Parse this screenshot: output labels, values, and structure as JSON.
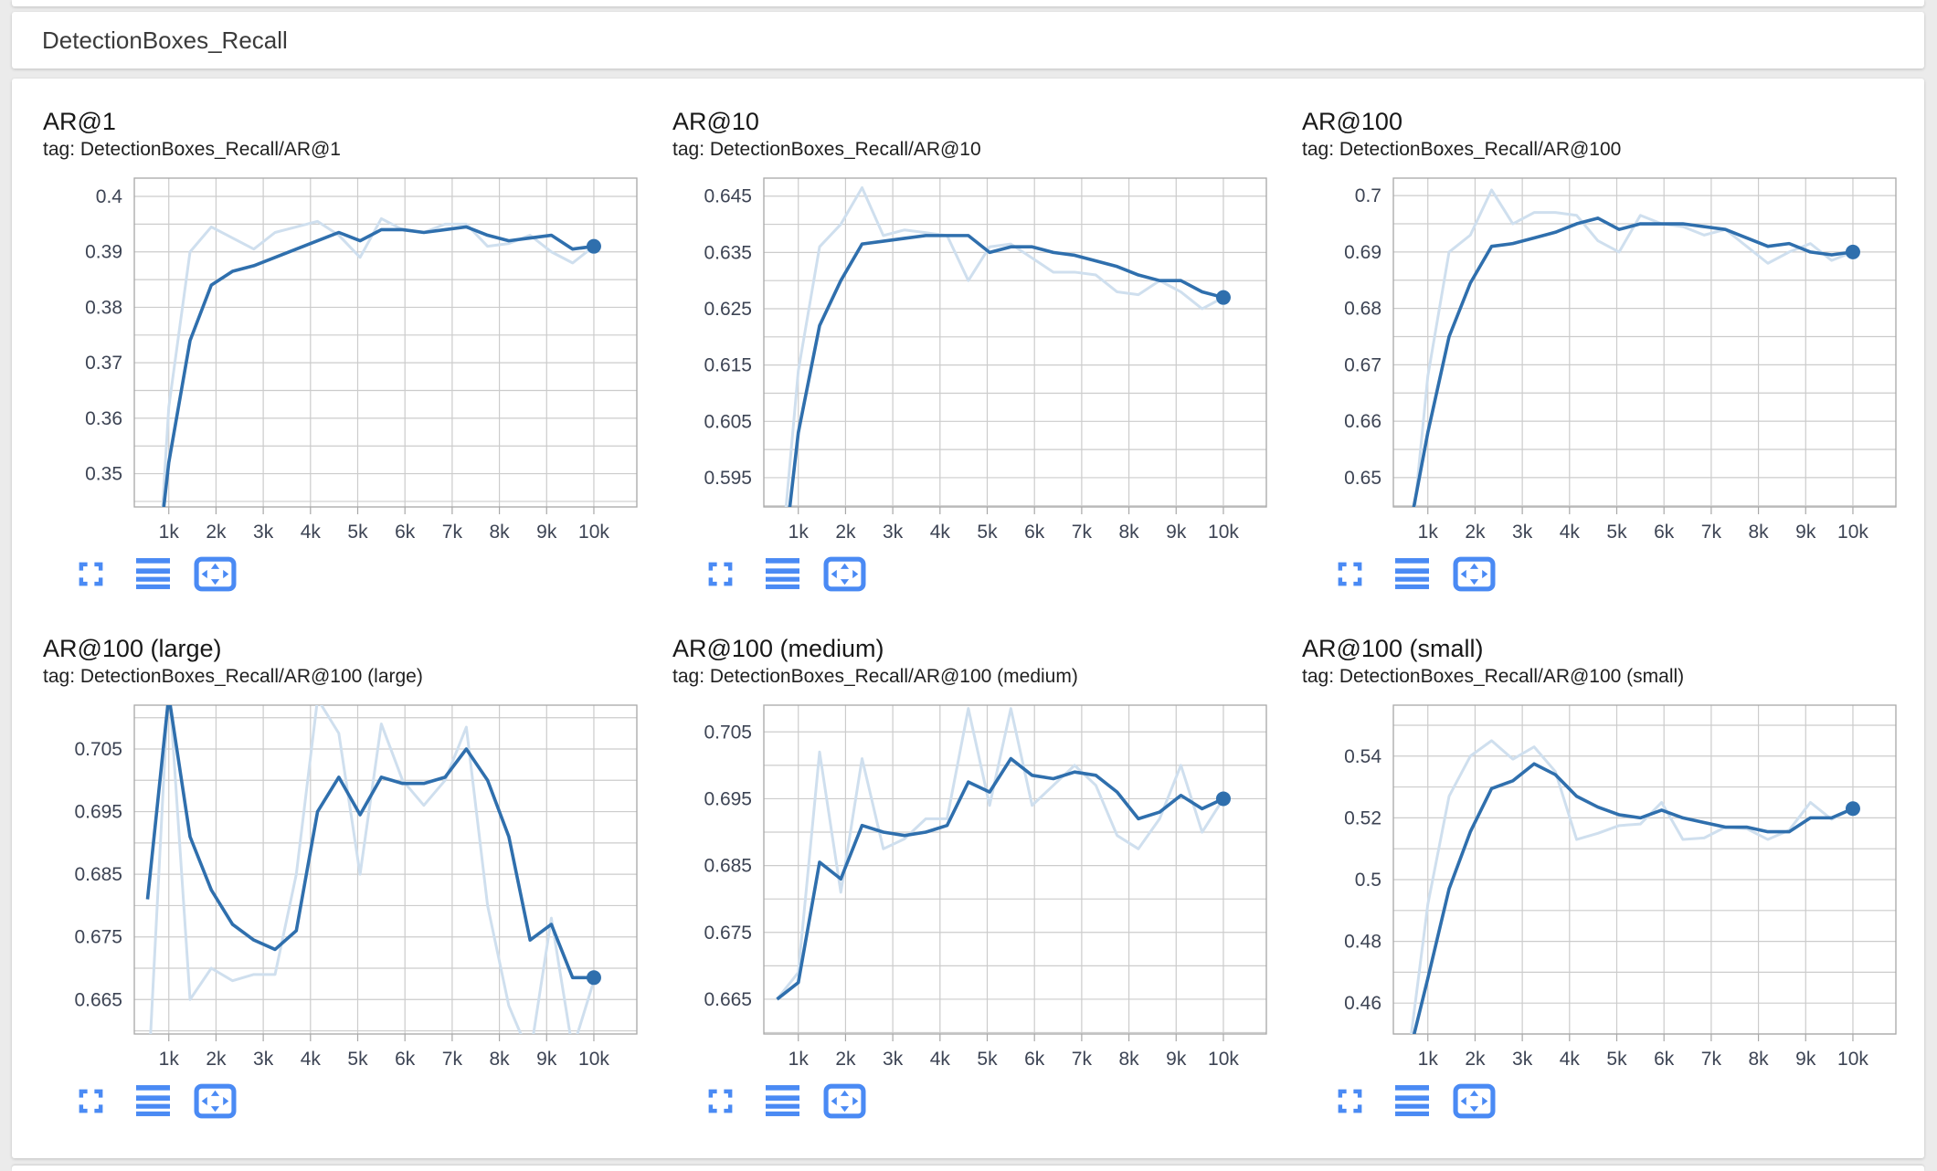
{
  "page": {
    "section_title": "DetectionBoxes_Recall",
    "background_color": "#ebebeb"
  },
  "colors": {
    "accent_blue": "#4a8af4",
    "line_smoothed": "#2f6fad",
    "line_raw": "#cfdfee",
    "grid": "#cccccc",
    "axis": "#a8a8a8",
    "tick_text": "#3d4454"
  },
  "toolbar": {
    "icons": [
      "fullscreen-icon",
      "log-scale-icon",
      "fit-domain-icon"
    ]
  },
  "chart_data": [
    {
      "type": "line",
      "title": "AR@1",
      "tag": "tag: DetectionBoxes_Recall/AR@1",
      "xlim": [
        270,
        10910
      ],
      "ylim": [
        0.344,
        0.4033
      ],
      "y_grid_step": 0.005,
      "yticks": [
        {
          "value": 0.35,
          "label": "0.35"
        },
        {
          "value": 0.36,
          "label": "0.36"
        },
        {
          "value": 0.37,
          "label": "0.37"
        },
        {
          "value": 0.38,
          "label": "0.38"
        },
        {
          "value": 0.39,
          "label": "0.39"
        },
        {
          "value": 0.4,
          "label": "0.4"
        }
      ],
      "xticks": [
        {
          "value": 1000,
          "label": "1k"
        },
        {
          "value": 2000,
          "label": "2k"
        },
        {
          "value": 3000,
          "label": "3k"
        },
        {
          "value": 4000,
          "label": "4k"
        },
        {
          "value": 5000,
          "label": "5k"
        },
        {
          "value": 6000,
          "label": "6k"
        },
        {
          "value": 7000,
          "label": "7k"
        },
        {
          "value": 8000,
          "label": "8k"
        },
        {
          "value": 9000,
          "label": "9k"
        },
        {
          "value": 10000,
          "label": "10k"
        }
      ],
      "x": [
        550,
        1000,
        1450,
        1900,
        2350,
        2800,
        3250,
        3700,
        4150,
        4600,
        5050,
        5500,
        5950,
        6400,
        6850,
        7300,
        7750,
        8200,
        8650,
        9100,
        9550,
        10000
      ],
      "series": [
        {
          "name": "raw",
          "values": [
            0.3,
            0.362,
            0.39,
            0.3945,
            0.3925,
            0.3905,
            0.3935,
            0.3945,
            0.3955,
            0.393,
            0.389,
            0.396,
            0.394,
            0.3935,
            0.395,
            0.395,
            0.391,
            0.3915,
            0.393,
            0.39,
            0.388,
            0.391
          ]
        },
        {
          "name": "smoothed",
          "values": [
            0.318,
            0.352,
            0.374,
            0.384,
            0.3865,
            0.3875,
            0.389,
            0.3905,
            0.392,
            0.3935,
            0.392,
            0.394,
            0.394,
            0.3935,
            0.394,
            0.3945,
            0.393,
            0.392,
            0.3925,
            0.393,
            0.3905,
            0.391
          ]
        }
      ]
    },
    {
      "type": "line",
      "title": "AR@10",
      "tag": "tag: DetectionBoxes_Recall/AR@10",
      "xlim": [
        270,
        10910
      ],
      "ylim": [
        0.5898,
        0.6482
      ],
      "y_grid_step": 0.005,
      "yticks": [
        {
          "value": 0.595,
          "label": "0.595"
        },
        {
          "value": 0.605,
          "label": "0.605"
        },
        {
          "value": 0.615,
          "label": "0.615"
        },
        {
          "value": 0.625,
          "label": "0.625"
        },
        {
          "value": 0.635,
          "label": "0.635"
        },
        {
          "value": 0.645,
          "label": "0.645"
        }
      ],
      "xticks": [
        {
          "value": 1000,
          "label": "1k"
        },
        {
          "value": 2000,
          "label": "2k"
        },
        {
          "value": 3000,
          "label": "3k"
        },
        {
          "value": 4000,
          "label": "4k"
        },
        {
          "value": 5000,
          "label": "5k"
        },
        {
          "value": 6000,
          "label": "6k"
        },
        {
          "value": 7000,
          "label": "7k"
        },
        {
          "value": 8000,
          "label": "8k"
        },
        {
          "value": 9000,
          "label": "9k"
        },
        {
          "value": 10000,
          "label": "10k"
        }
      ],
      "x": [
        550,
        1000,
        1450,
        1900,
        2350,
        2800,
        3250,
        3700,
        4150,
        4600,
        5050,
        5500,
        5950,
        6400,
        6850,
        7300,
        7750,
        8200,
        8650,
        9100,
        9550,
        10000
      ],
      "series": [
        {
          "name": "raw",
          "values": [
            0.572,
            0.614,
            0.636,
            0.64,
            0.6465,
            0.638,
            0.639,
            0.6385,
            0.638,
            0.63,
            0.636,
            0.6365,
            0.634,
            0.6315,
            0.6315,
            0.631,
            0.628,
            0.6275,
            0.63,
            0.628,
            0.625,
            0.627
          ]
        },
        {
          "name": "smoothed",
          "values": [
            0.57,
            0.603,
            0.622,
            0.63,
            0.6365,
            0.637,
            0.6375,
            0.638,
            0.638,
            0.638,
            0.635,
            0.636,
            0.636,
            0.635,
            0.6345,
            0.6335,
            0.6325,
            0.631,
            0.63,
            0.63,
            0.628,
            0.627
          ]
        }
      ]
    },
    {
      "type": "line",
      "title": "AR@100",
      "tag": "tag: DetectionBoxes_Recall/AR@100",
      "xlim": [
        270,
        10910
      ],
      "ylim": [
        0.6448,
        0.7031
      ],
      "y_grid_step": 0.005,
      "yticks": [
        {
          "value": 0.65,
          "label": "0.65"
        },
        {
          "value": 0.66,
          "label": "0.66"
        },
        {
          "value": 0.67,
          "label": "0.67"
        },
        {
          "value": 0.68,
          "label": "0.68"
        },
        {
          "value": 0.69,
          "label": "0.69"
        },
        {
          "value": 0.7,
          "label": "0.7"
        }
      ],
      "xticks": [
        {
          "value": 1000,
          "label": "1k"
        },
        {
          "value": 2000,
          "label": "2k"
        },
        {
          "value": 3000,
          "label": "3k"
        },
        {
          "value": 4000,
          "label": "4k"
        },
        {
          "value": 5000,
          "label": "5k"
        },
        {
          "value": 6000,
          "label": "6k"
        },
        {
          "value": 7000,
          "label": "7k"
        },
        {
          "value": 8000,
          "label": "8k"
        },
        {
          "value": 9000,
          "label": "9k"
        },
        {
          "value": 10000,
          "label": "10k"
        }
      ],
      "x": [
        550,
        1000,
        1450,
        1900,
        2350,
        2800,
        3250,
        3700,
        4150,
        4600,
        5050,
        5500,
        5950,
        6400,
        6850,
        7300,
        7750,
        8200,
        8650,
        9100,
        9550,
        10000
      ],
      "series": [
        {
          "name": "raw",
          "values": [
            0.63,
            0.668,
            0.69,
            0.693,
            0.701,
            0.695,
            0.697,
            0.697,
            0.6965,
            0.692,
            0.69,
            0.6965,
            0.695,
            0.6945,
            0.693,
            0.694,
            0.691,
            0.688,
            0.69,
            0.6915,
            0.6885,
            0.69
          ]
        },
        {
          "name": "smoothed",
          "values": [
            0.638,
            0.658,
            0.675,
            0.6845,
            0.691,
            0.6915,
            0.6925,
            0.6935,
            0.695,
            0.696,
            0.694,
            0.695,
            0.695,
            0.695,
            0.6945,
            0.694,
            0.6925,
            0.691,
            0.6915,
            0.69,
            0.6895,
            0.69
          ]
        }
      ]
    },
    {
      "type": "line",
      "title": "AR@100 (large)",
      "tag": "tag: DetectionBoxes_Recall/AR@100 (large)",
      "xlim": [
        270,
        10910
      ],
      "ylim": [
        0.6595,
        0.712
      ],
      "y_grid_step": 0.005,
      "yticks": [
        {
          "value": 0.665,
          "label": "0.665"
        },
        {
          "value": 0.675,
          "label": "0.675"
        },
        {
          "value": 0.685,
          "label": "0.685"
        },
        {
          "value": 0.695,
          "label": "0.695"
        },
        {
          "value": 0.705,
          "label": "0.705"
        }
      ],
      "xticks": [
        {
          "value": 1000,
          "label": "1k"
        },
        {
          "value": 2000,
          "label": "2k"
        },
        {
          "value": 3000,
          "label": "3k"
        },
        {
          "value": 4000,
          "label": "4k"
        },
        {
          "value": 5000,
          "label": "5k"
        },
        {
          "value": 6000,
          "label": "6k"
        },
        {
          "value": 7000,
          "label": "7k"
        },
        {
          "value": 8000,
          "label": "8k"
        },
        {
          "value": 9000,
          "label": "9k"
        },
        {
          "value": 10000,
          "label": "10k"
        }
      ],
      "x": [
        550,
        1000,
        1450,
        1900,
        2350,
        2800,
        3250,
        3700,
        4150,
        4600,
        5050,
        5500,
        5950,
        6400,
        6850,
        7300,
        7750,
        8200,
        8650,
        9100,
        9550,
        10000
      ],
      "series": [
        {
          "name": "raw",
          "values": [
            0.65,
            0.716,
            0.665,
            0.67,
            0.668,
            0.669,
            0.669,
            0.685,
            0.713,
            0.7075,
            0.685,
            0.709,
            0.7,
            0.696,
            0.7,
            0.7085,
            0.68,
            0.664,
            0.656,
            0.678,
            0.657,
            0.668
          ]
        },
        {
          "name": "smoothed",
          "values": [
            0.681,
            0.7135,
            0.691,
            0.6825,
            0.677,
            0.6745,
            0.673,
            0.676,
            0.695,
            0.7005,
            0.6945,
            0.7005,
            0.6995,
            0.6995,
            0.7005,
            0.705,
            0.7,
            0.691,
            0.6745,
            0.677,
            0.6685,
            0.6685
          ]
        }
      ]
    },
    {
      "type": "line",
      "title": "AR@100 (medium)",
      "tag": "tag: DetectionBoxes_Recall/AR@100 (medium)",
      "xlim": [
        270,
        10910
      ],
      "ylim": [
        0.6598,
        0.709
      ],
      "y_grid_step": 0.005,
      "yticks": [
        {
          "value": 0.665,
          "label": "0.665"
        },
        {
          "value": 0.675,
          "label": "0.675"
        },
        {
          "value": 0.685,
          "label": "0.685"
        },
        {
          "value": 0.695,
          "label": "0.695"
        },
        {
          "value": 0.705,
          "label": "0.705"
        }
      ],
      "xticks": [
        {
          "value": 1000,
          "label": "1k"
        },
        {
          "value": 2000,
          "label": "2k"
        },
        {
          "value": 3000,
          "label": "3k"
        },
        {
          "value": 4000,
          "label": "4k"
        },
        {
          "value": 5000,
          "label": "5k"
        },
        {
          "value": 6000,
          "label": "6k"
        },
        {
          "value": 7000,
          "label": "7k"
        },
        {
          "value": 8000,
          "label": "8k"
        },
        {
          "value": 9000,
          "label": "9k"
        },
        {
          "value": 10000,
          "label": "10k"
        }
      ],
      "x": [
        550,
        1000,
        1450,
        1900,
        2350,
        2800,
        3250,
        3700,
        4150,
        4600,
        5050,
        5500,
        5950,
        6400,
        6850,
        7300,
        7750,
        8200,
        8650,
        9100,
        9550,
        10000
      ],
      "series": [
        {
          "name": "raw",
          "values": [
            0.665,
            0.669,
            0.702,
            0.681,
            0.701,
            0.6875,
            0.689,
            0.692,
            0.692,
            0.7085,
            0.694,
            0.7085,
            0.694,
            0.697,
            0.7,
            0.697,
            0.6895,
            0.6875,
            0.692,
            0.7,
            0.69,
            0.695
          ]
        },
        {
          "name": "smoothed",
          "values": [
            0.665,
            0.6675,
            0.6855,
            0.683,
            0.691,
            0.69,
            0.6895,
            0.69,
            0.691,
            0.6975,
            0.696,
            0.701,
            0.6985,
            0.698,
            0.699,
            0.6985,
            0.696,
            0.692,
            0.693,
            0.6955,
            0.6935,
            0.695
          ]
        }
      ]
    },
    {
      "type": "line",
      "title": "AR@100 (small)",
      "tag": "tag: DetectionBoxes_Recall/AR@100 (small)",
      "xlim": [
        270,
        10910
      ],
      "ylim": [
        0.45,
        0.5565
      ],
      "y_grid_step": 0.01,
      "yticks": [
        {
          "value": 0.46,
          "label": "0.46"
        },
        {
          "value": 0.48,
          "label": "0.48"
        },
        {
          "value": 0.5,
          "label": "0.5"
        },
        {
          "value": 0.52,
          "label": "0.52"
        },
        {
          "value": 0.54,
          "label": "0.54"
        }
      ],
      "xticks": [
        {
          "value": 1000,
          "label": "1k"
        },
        {
          "value": 2000,
          "label": "2k"
        },
        {
          "value": 3000,
          "label": "3k"
        },
        {
          "value": 4000,
          "label": "4k"
        },
        {
          "value": 5000,
          "label": "5k"
        },
        {
          "value": 6000,
          "label": "6k"
        },
        {
          "value": 7000,
          "label": "7k"
        },
        {
          "value": 8000,
          "label": "8k"
        },
        {
          "value": 9000,
          "label": "9k"
        },
        {
          "value": 10000,
          "label": "10k"
        }
      ],
      "x": [
        550,
        1000,
        1450,
        1900,
        2350,
        2800,
        3250,
        3700,
        4150,
        4600,
        5050,
        5500,
        5950,
        6400,
        6850,
        7300,
        7750,
        8200,
        8650,
        9100,
        9550,
        10000
      ],
      "series": [
        {
          "name": "raw",
          "values": [
            0.438,
            0.492,
            0.527,
            0.54,
            0.545,
            0.539,
            0.543,
            0.535,
            0.513,
            0.515,
            0.5175,
            0.518,
            0.525,
            0.513,
            0.5135,
            0.517,
            0.5165,
            0.513,
            0.516,
            0.525,
            0.5195,
            0.523
          ]
        },
        {
          "name": "smoothed",
          "values": [
            0.44,
            0.468,
            0.497,
            0.5155,
            0.5295,
            0.532,
            0.5375,
            0.534,
            0.527,
            0.5235,
            0.521,
            0.52,
            0.5225,
            0.52,
            0.5185,
            0.517,
            0.517,
            0.5155,
            0.5155,
            0.52,
            0.52,
            0.523
          ]
        }
      ]
    }
  ]
}
